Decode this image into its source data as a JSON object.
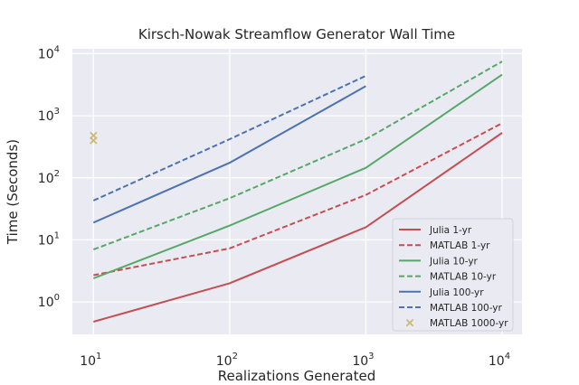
{
  "chart_data": {
    "type": "line",
    "title": "Kirsch-Nowak Streamflow Generator Wall Time",
    "xlabel": "Realizations Generated",
    "ylabel": "Time (Seconds)",
    "xscale": "log",
    "yscale": "log",
    "xlim": [
      7,
      14000
    ],
    "ylim": [
      0.3,
      12000
    ],
    "grid": true,
    "legend_position": "lower-right",
    "x_ticks": [
      {
        "base": "10",
        "exp": "1"
      },
      {
        "base": "10",
        "exp": "2"
      },
      {
        "base": "10",
        "exp": "3"
      },
      {
        "base": "10",
        "exp": "4"
      }
    ],
    "y_ticks": [
      {
        "base": "10",
        "exp": "0"
      },
      {
        "base": "10",
        "exp": "1"
      },
      {
        "base": "10",
        "exp": "2"
      },
      {
        "base": "10",
        "exp": "3"
      },
      {
        "base": "10",
        "exp": "4"
      }
    ],
    "series": [
      {
        "name": "Julia 1-yr",
        "color": "#c44e52",
        "style": "solid",
        "x": [
          10,
          100,
          1000,
          10000
        ],
        "y": [
          0.48,
          2.0,
          16,
          530
        ]
      },
      {
        "name": "MATLAB 1-yr",
        "color": "#c44e52",
        "style": "dashed",
        "x": [
          10,
          100,
          1000,
          10000
        ],
        "y": [
          2.7,
          7.3,
          53,
          760
        ]
      },
      {
        "name": "Julia 10-yr",
        "color": "#55a868",
        "style": "solid",
        "x": [
          10,
          100,
          1000,
          10000
        ],
        "y": [
          2.4,
          17,
          145,
          4600
        ]
      },
      {
        "name": "MATLAB 10-yr",
        "color": "#55a868",
        "style": "dashed",
        "x": [
          10,
          100,
          1000,
          10000
        ],
        "y": [
          7.0,
          47,
          420,
          7500
        ]
      },
      {
        "name": "Julia 100-yr",
        "color": "#4c72b0",
        "style": "solid",
        "x": [
          10,
          100,
          1000
        ],
        "y": [
          19,
          175,
          3000
        ]
      },
      {
        "name": "MATLAB 100-yr",
        "color": "#4c72b0",
        "style": "dashed",
        "x": [
          10,
          100,
          1000
        ],
        "y": [
          43,
          420,
          4400
        ]
      },
      {
        "name": "MATLAB 1000-yr",
        "color": "#ccb974",
        "style": "marker-x",
        "x": [
          10,
          10
        ],
        "y": [
          400,
          480
        ]
      }
    ]
  }
}
